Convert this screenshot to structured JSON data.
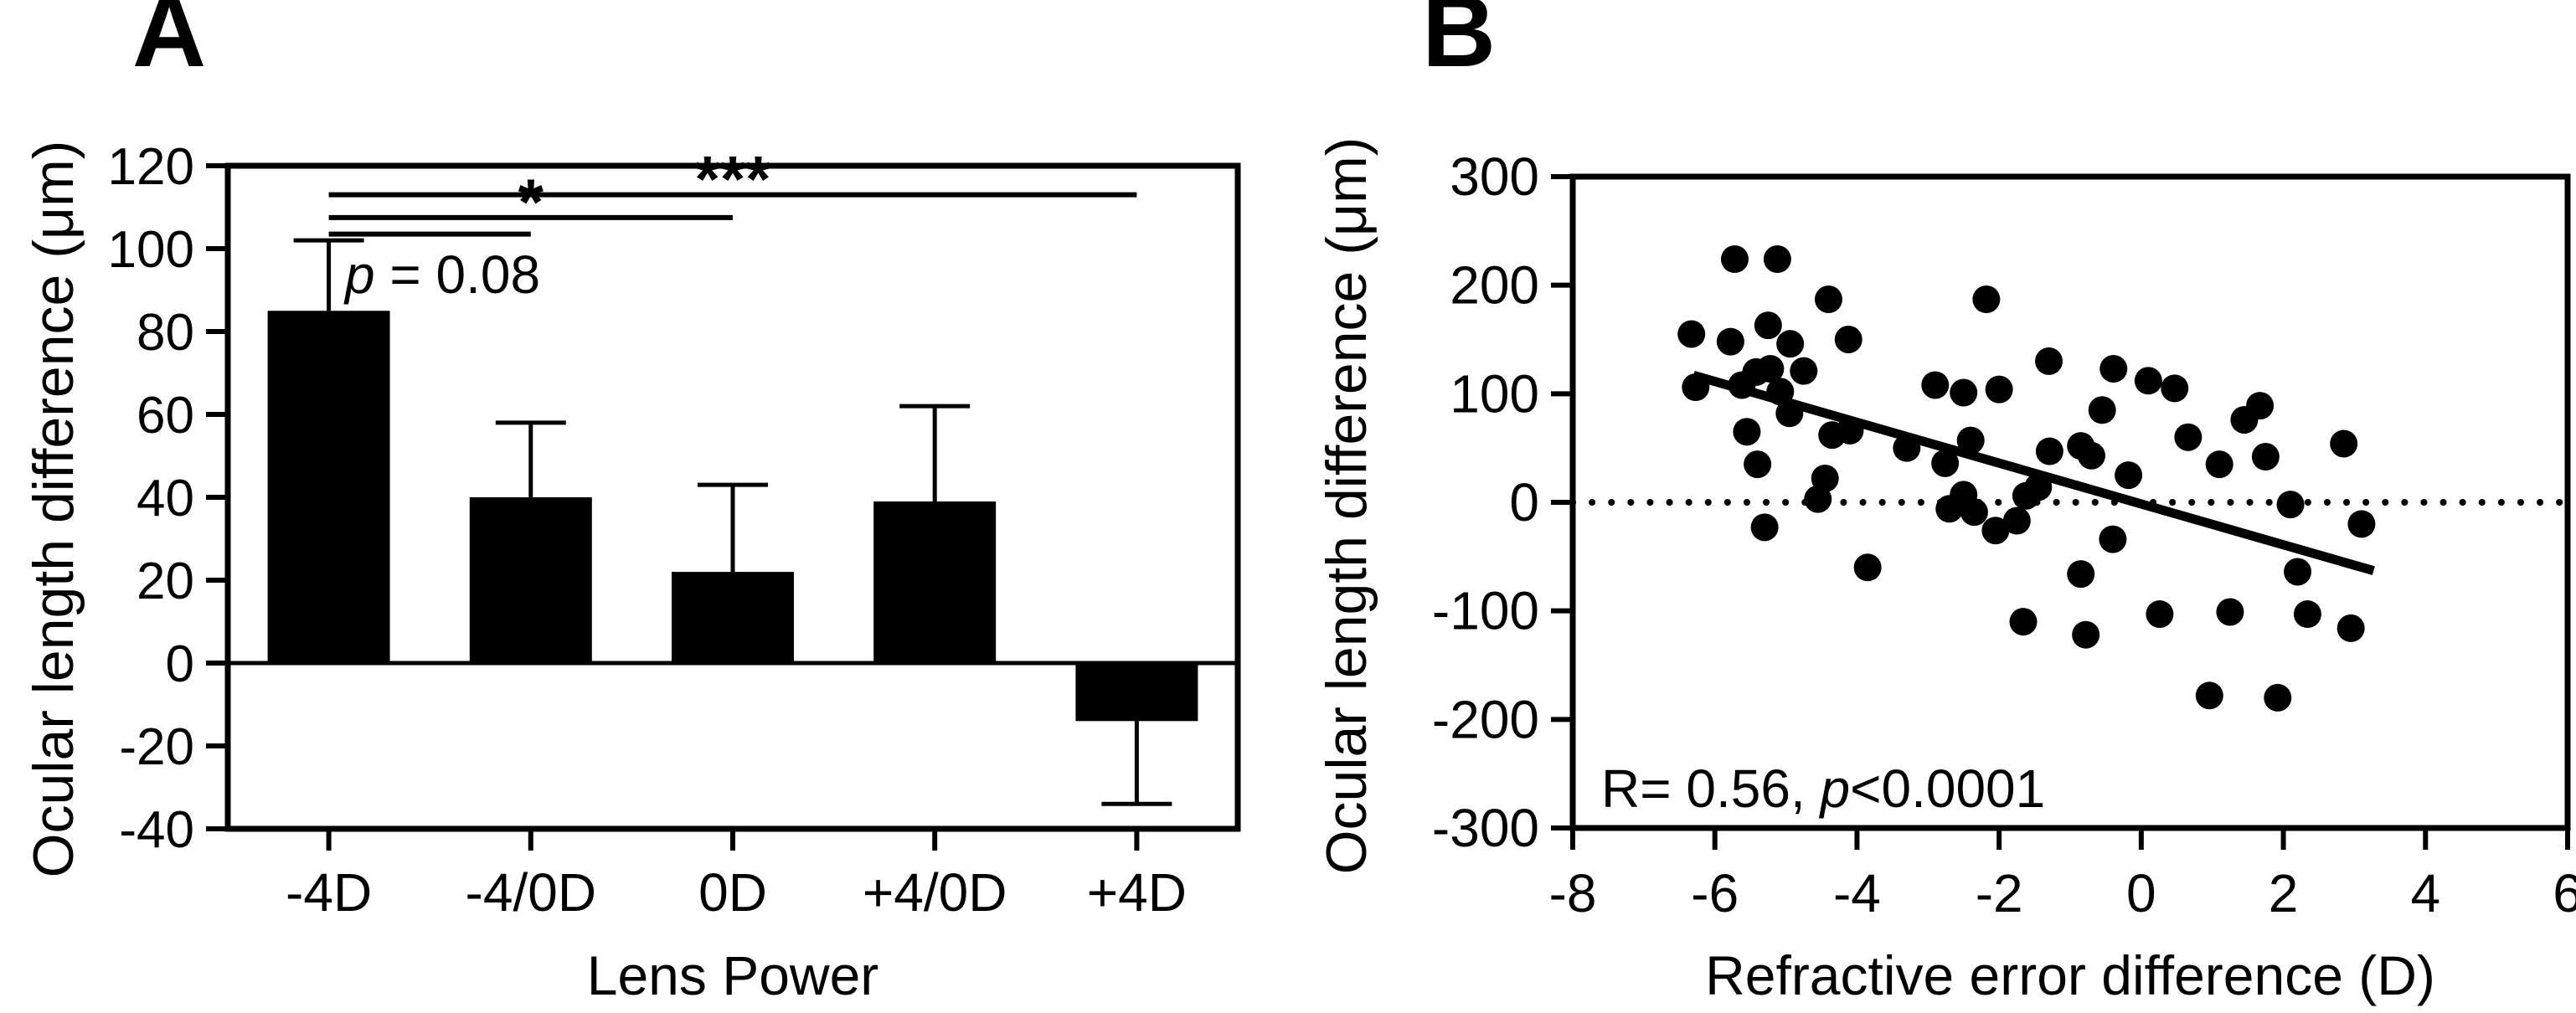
{
  "panels": {
    "a": {
      "label": "A",
      "y_title": "Ocular length difference (μm)",
      "x_title": "Lens Power",
      "p_annotation": {
        "p": "p",
        "rest": " = 0.08"
      }
    },
    "b": {
      "label": "B",
      "y_title": "Ocular length difference (μm)",
      "x_title": "Refractive error difference (D)",
      "annotation": {
        "prefix": "R= 0.56, ",
        "p": "p",
        "suffix": "<0.0001"
      }
    }
  },
  "colors": {
    "ink": "#000000",
    "background": "#ffffff"
  },
  "chart_data": [
    {
      "type": "bar",
      "panel": "A",
      "title": "",
      "xlabel": "Lens Power",
      "ylabel": "Ocular length difference (μm)",
      "categories": [
        "-4D",
        "-4/0D",
        "0D",
        "+4/0D",
        "+4D"
      ],
      "values": [
        85,
        40,
        22,
        39,
        -14
      ],
      "error_caps": [
        102,
        58,
        43,
        62,
        -34
      ],
      "ylim": [
        -40,
        120
      ],
      "yticks": [
        120,
        100,
        80,
        60,
        40,
        20,
        0,
        -20,
        -40
      ],
      "bar_color": "#000000",
      "grid": false,
      "significance": [
        {
          "i": 0,
          "j": 1,
          "y": 103.5,
          "label": ""
        },
        {
          "i": 0,
          "j": 2,
          "y": 107.5,
          "label": "*"
        },
        {
          "i": 0,
          "j": 4,
          "y": 113,
          "label": "***"
        }
      ],
      "p_label": "p = 0.08"
    },
    {
      "type": "scatter",
      "panel": "B",
      "title": "",
      "xlabel": "Refractive error difference (D)",
      "ylabel": "Ocular length difference (μm)",
      "xlim": [
        -8,
        6
      ],
      "ylim": [
        -300,
        300
      ],
      "xticks": [
        -8,
        -6,
        -4,
        -2,
        0,
        2,
        4,
        6
      ],
      "yticks": [
        300,
        200,
        100,
        0,
        -100,
        -200,
        -300
      ],
      "grid": false,
      "zero_line_y": 0,
      "regression_line": {
        "x1": -6.3,
        "y1": 117,
        "x2": 3.27,
        "y2": -63
      },
      "annotation": "R= 0.56, p<0.0001",
      "r_value": 0.56,
      "points": [
        [
          -6.33,
          155
        ],
        [
          -6.27,
          106
        ],
        [
          -5.78,
          148
        ],
        [
          -5.72,
          224
        ],
        [
          -5.62,
          108
        ],
        [
          -5.55,
          65
        ],
        [
          -5.42,
          120
        ],
        [
          -5.4,
          35
        ],
        [
          -5.3,
          -23
        ],
        [
          -5.25,
          163
        ],
        [
          -5.22,
          123
        ],
        [
          -5.12,
          224
        ],
        [
          -5.08,
          102
        ],
        [
          -4.95,
          82
        ],
        [
          -4.94,
          146
        ],
        [
          -4.75,
          121
        ],
        [
          -4.55,
          3
        ],
        [
          -4.45,
          22
        ],
        [
          -4.4,
          187
        ],
        [
          -4.35,
          62
        ],
        [
          -4.12,
          150
        ],
        [
          -4.1,
          66
        ],
        [
          -3.85,
          -60
        ],
        [
          -3.3,
          50
        ],
        [
          -2.9,
          108
        ],
        [
          -2.76,
          36
        ],
        [
          -2.7,
          -6
        ],
        [
          -2.5,
          101
        ],
        [
          -2.5,
          7
        ],
        [
          -2.4,
          57
        ],
        [
          -2.35,
          -9
        ],
        [
          -2.18,
          187
        ],
        [
          -2.05,
          -26
        ],
        [
          -2.0,
          104
        ],
        [
          -1.75,
          -17
        ],
        [
          -1.66,
          -110
        ],
        [
          -1.62,
          6
        ],
        [
          -1.45,
          14
        ],
        [
          -1.3,
          130
        ],
        [
          -1.29,
          47
        ],
        [
          -0.85,
          52
        ],
        [
          -0.85,
          -66
        ],
        [
          -0.78,
          -122
        ],
        [
          -0.7,
          43
        ],
        [
          -0.55,
          85
        ],
        [
          -0.4,
          -34
        ],
        [
          -0.39,
          123
        ],
        [
          -0.18,
          25
        ],
        [
          0.1,
          112
        ],
        [
          0.26,
          -103
        ],
        [
          0.47,
          105
        ],
        [
          0.66,
          60
        ],
        [
          0.96,
          -178
        ],
        [
          1.1,
          35
        ],
        [
          1.25,
          -101
        ],
        [
          1.45,
          76
        ],
        [
          1.67,
          89
        ],
        [
          1.75,
          42
        ],
        [
          1.92,
          -180
        ],
        [
          2.1,
          -2
        ],
        [
          2.2,
          -64
        ],
        [
          2.34,
          -103
        ],
        [
          2.85,
          54
        ],
        [
          2.95,
          -116
        ],
        [
          3.1,
          -20
        ]
      ]
    }
  ]
}
